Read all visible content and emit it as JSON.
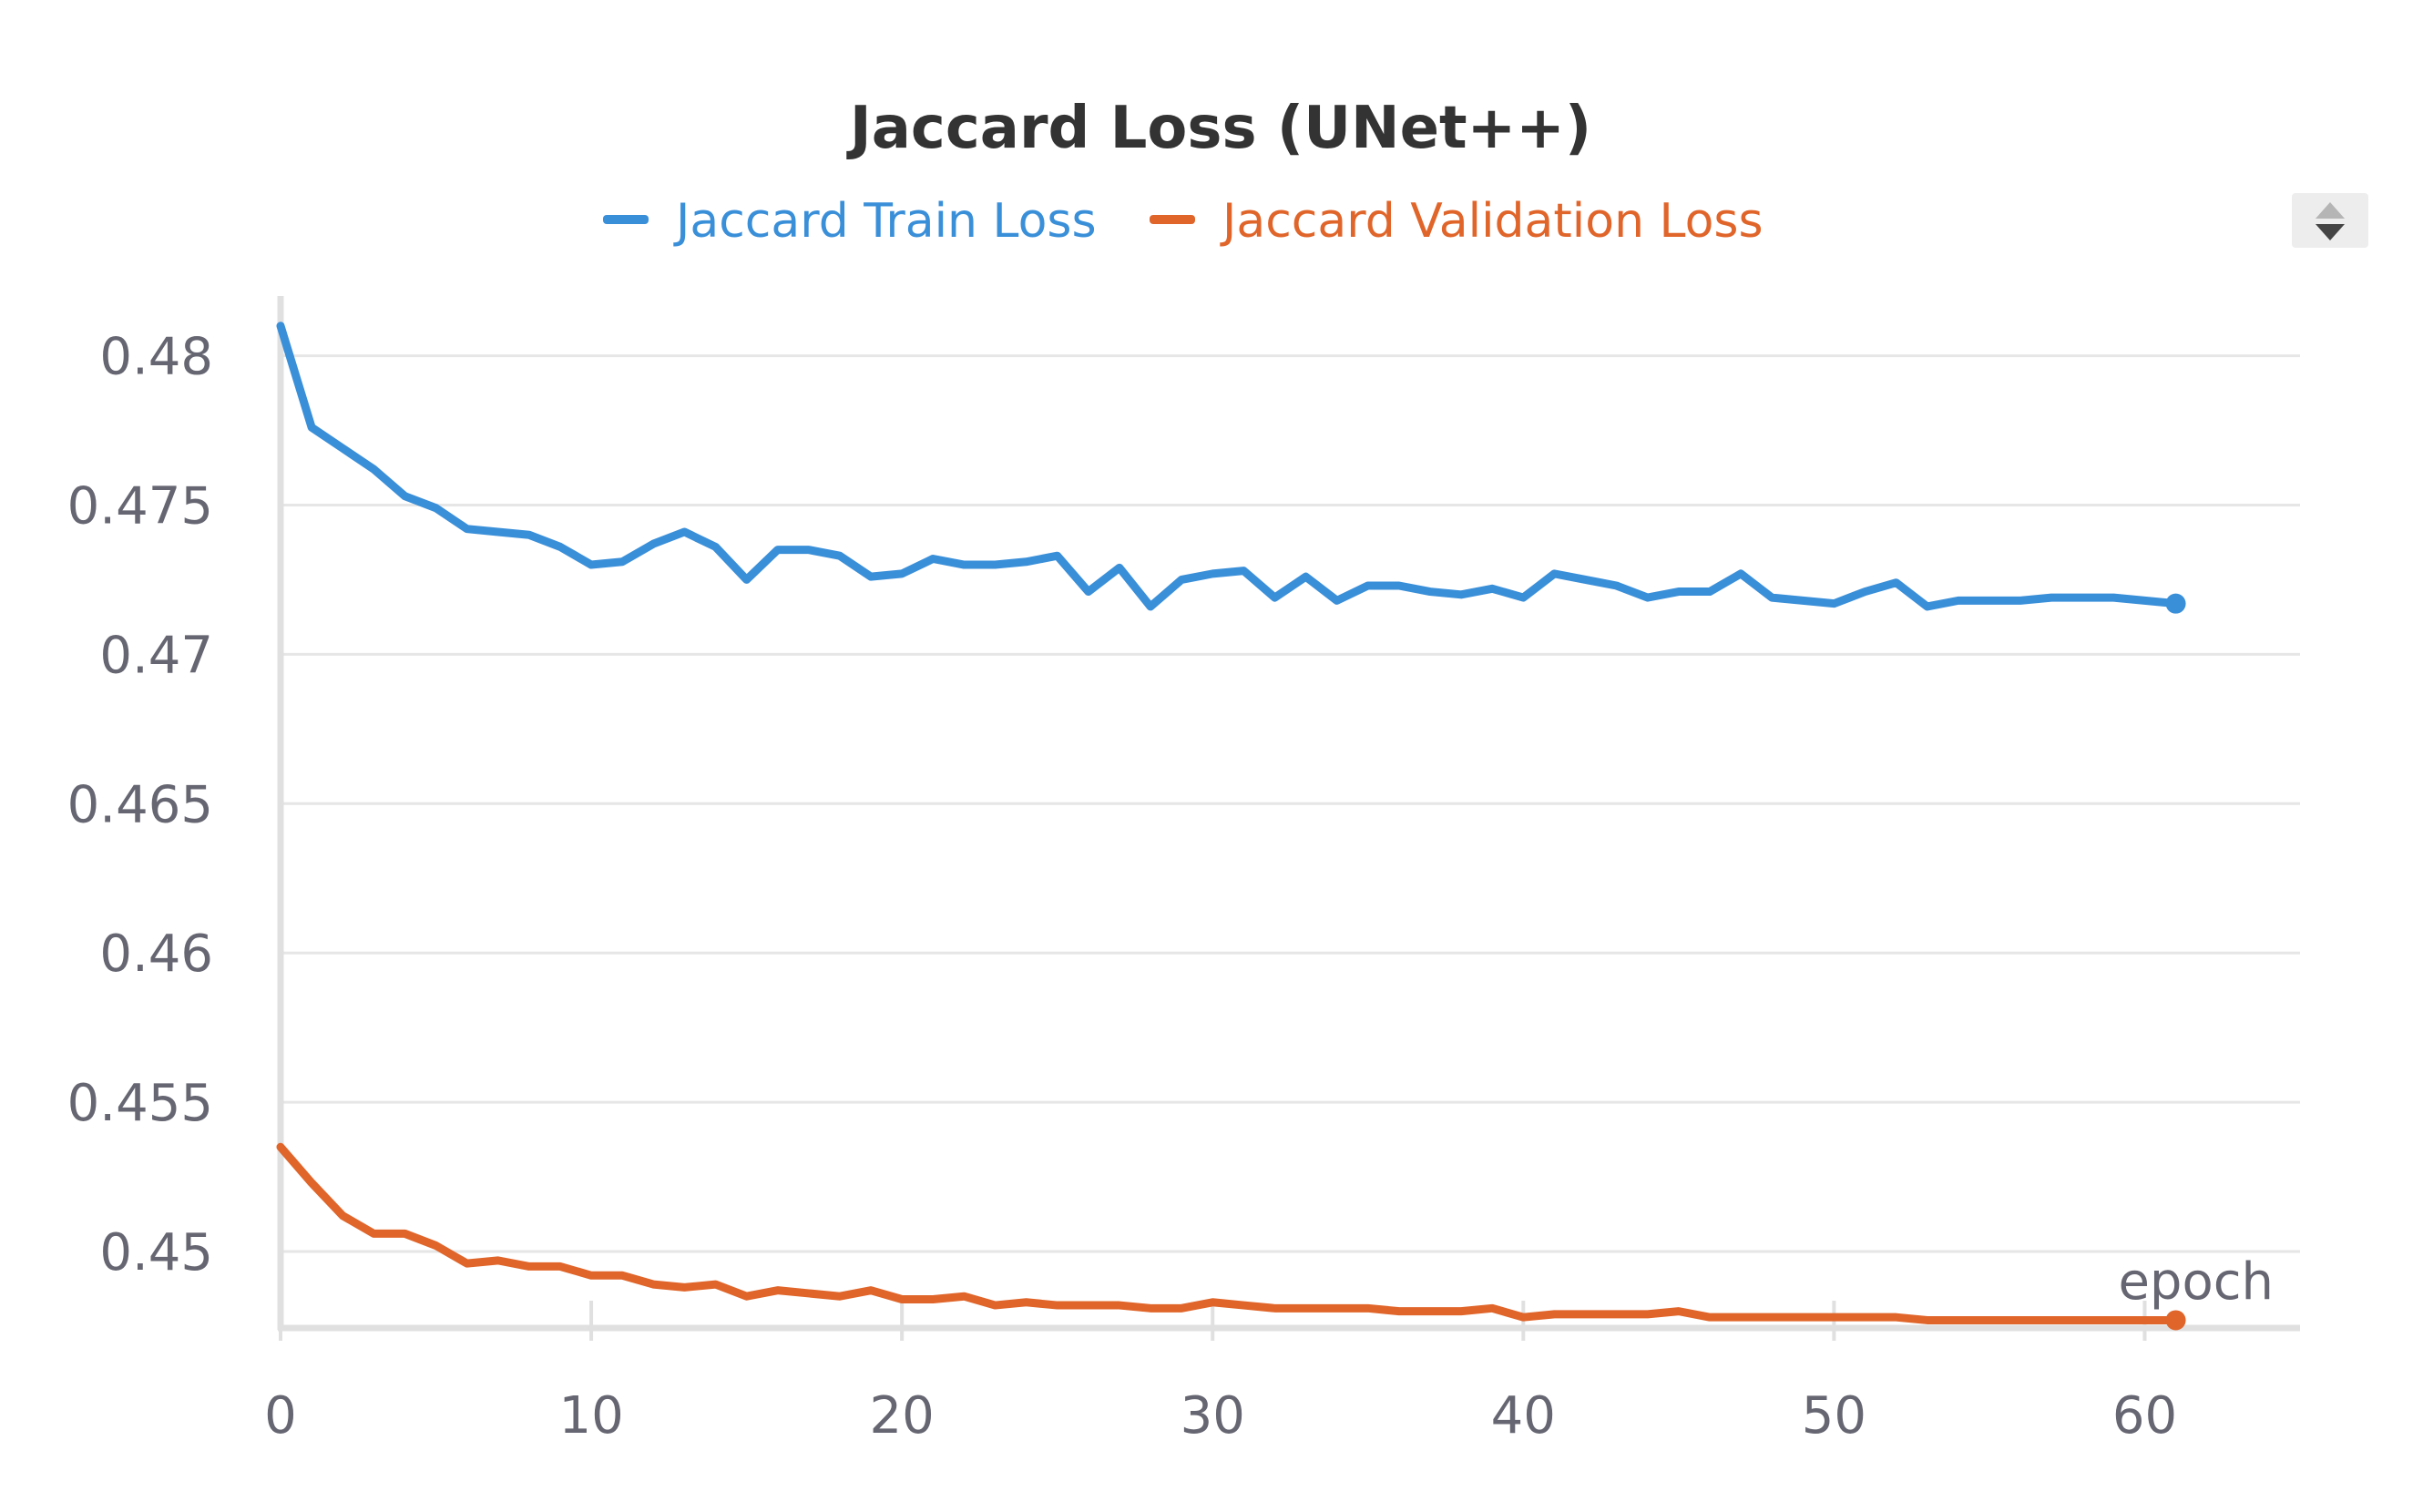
{
  "chart_data": {
    "type": "line",
    "title": "Jaccard Loss (UNet++)",
    "xlabel": "epoch",
    "ylabel": "",
    "xlim": [
      0,
      65
    ],
    "ylim": [
      0.4475,
      0.482
    ],
    "x_ticks": [
      0,
      10,
      20,
      30,
      40,
      50,
      60
    ],
    "y_ticks": [
      0.45,
      0.455,
      0.46,
      0.465,
      0.47,
      0.475,
      0.48
    ],
    "x_tick_labels": [
      "0",
      "10",
      "20",
      "30",
      "40",
      "50",
      "60"
    ],
    "y_tick_labels": [
      "0.45",
      "0.455",
      "0.46",
      "0.465",
      "0.47",
      "0.475",
      "0.48"
    ],
    "grid": true,
    "legend_position": "top-center",
    "x": [
      0,
      1,
      2,
      3,
      4,
      5,
      6,
      7,
      8,
      9,
      10,
      11,
      12,
      13,
      14,
      15,
      16,
      17,
      18,
      19,
      20,
      21,
      22,
      23,
      24,
      25,
      26,
      27,
      28,
      29,
      30,
      31,
      32,
      33,
      34,
      35,
      36,
      37,
      38,
      39,
      40,
      41,
      42,
      43,
      44,
      45,
      46,
      47,
      48,
      49,
      50,
      51,
      52,
      53,
      54,
      55,
      56,
      57,
      58,
      59,
      60,
      61
    ],
    "series": [
      {
        "name": "Jaccard Train Loss",
        "color": "#3a8fd9",
        "values": [
          0.481,
          0.4776,
          0.4769,
          0.4762,
          0.4753,
          0.4749,
          0.4742,
          0.4741,
          0.474,
          0.4736,
          0.473,
          0.4731,
          0.4737,
          0.4741,
          0.4736,
          0.4725,
          0.4735,
          0.4735,
          0.4733,
          0.4726,
          0.4727,
          0.4732,
          0.473,
          0.473,
          0.4731,
          0.4733,
          0.4721,
          0.4729,
          0.4716,
          0.4725,
          0.4727,
          0.4728,
          0.4719,
          0.4726,
          0.4718,
          0.4723,
          0.4723,
          0.4721,
          0.472,
          0.4722,
          0.4719,
          0.4727,
          0.4725,
          0.4723,
          0.4719,
          0.4721,
          0.4721,
          0.4727,
          0.4719,
          0.4718,
          0.4717,
          0.4721,
          0.4724,
          0.4716,
          0.4718,
          0.4718,
          0.4718,
          0.4719,
          0.4719,
          0.4719,
          0.4718,
          0.4717
        ]
      },
      {
        "name": "Jaccard Validation Loss",
        "color": "#e0652a",
        "values": [
          0.4535,
          0.4523,
          0.4512,
          0.4506,
          0.4506,
          0.4502,
          0.4496,
          0.4497,
          0.4495,
          0.4495,
          0.4492,
          0.4492,
          0.4489,
          0.4488,
          0.4489,
          0.4485,
          0.4487,
          0.4486,
          0.4485,
          0.4487,
          0.4484,
          0.4484,
          0.4485,
          0.4482,
          0.4483,
          0.4482,
          0.4482,
          0.4482,
          0.4481,
          0.4481,
          0.4483,
          0.4482,
          0.4481,
          0.4481,
          0.4481,
          0.4481,
          0.448,
          0.448,
          0.448,
          0.4481,
          0.4478,
          0.4479,
          0.4479,
          0.4479,
          0.4479,
          0.448,
          0.4478,
          0.4478,
          0.4478,
          0.4478,
          0.4478,
          0.4478,
          0.4478,
          0.4477,
          0.4477,
          0.4477,
          0.4477,
          0.4477,
          0.4477,
          0.4477,
          0.4477,
          0.4477
        ]
      }
    ]
  }
}
